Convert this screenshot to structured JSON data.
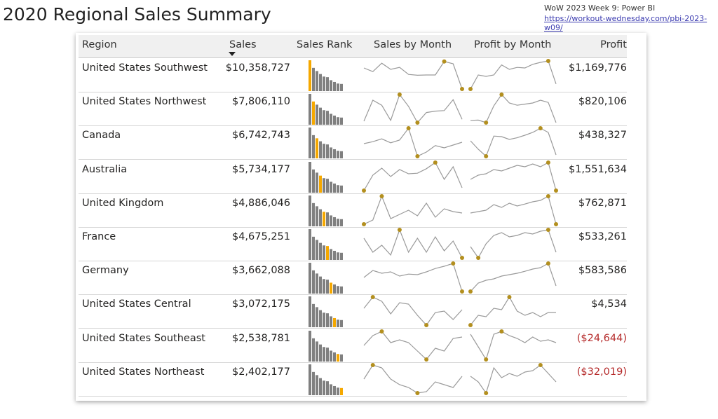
{
  "title": "2020 Regional Sales Summary",
  "header_note": "WoW 2023 Week 9: Power BI",
  "header_link": "https://workout-wednesday.com/pbi-2023-w09/",
  "columns": {
    "region": "Region",
    "sales": "Sales",
    "rank": "Sales Rank",
    "sales_month": "Sales by Month",
    "profit_month": "Profit by Month",
    "profit": "Profit"
  },
  "sort": {
    "column": "Sales",
    "direction": "descending"
  },
  "colors": {
    "highlight": "#F5A800",
    "bar": "#808080",
    "line": "#9a9a9a",
    "marker": "#B38F1E",
    "negative": "#B52A2A"
  },
  "rank_values": [
    10358727,
    7806110,
    6742743,
    5734177,
    4886046,
    4675251,
    3662088,
    3072175,
    2538781,
    2402177
  ],
  "rows": [
    {
      "region": "United States Southwest",
      "sales": "$10,358,727",
      "profit": "$1,169,776",
      "neg": false,
      "sm": [
        0.75,
        0.62,
        0.92,
        0.7,
        0.77,
        0.52,
        0.49,
        0.5,
        0.5,
        0.98,
        0.9,
        0
      ],
      "pm": [
        0,
        0.5,
        0.45,
        0.5,
        0.86,
        0.7,
        0.77,
        0.75,
        0.88,
        0.95,
        1,
        0.18
      ]
    },
    {
      "region": "United States Northwest",
      "sales": "$7,806,110",
      "profit": "$820,106",
      "neg": false,
      "sm": [
        0.05,
        0.8,
        0.62,
        0.08,
        1,
        0.58,
        0,
        0.36,
        0.41,
        0.43,
        0.82,
        0.12
      ],
      "pm": [
        0.08,
        0.09,
        0,
        0.6,
        1,
        0.7,
        0.62,
        0.66,
        0.7,
        0.8,
        0.72,
        0
      ]
    },
    {
      "region": "Canada",
      "sales": "$6,742,743",
      "profit": "$438,327",
      "neg": false,
      "sm": [
        0.45,
        0.52,
        0.62,
        0.48,
        0.58,
        1,
        0,
        0.15,
        0.38,
        0.3,
        0.4,
        0.5
      ],
      "pm": [
        0.55,
        0.25,
        0,
        0.72,
        0.7,
        0.6,
        0.66,
        0.75,
        0.85,
        1,
        0.85,
        0.05
      ]
    },
    {
      "region": "Australia",
      "sales": "$5,734,177",
      "profit": "$1,551,634",
      "neg": false,
      "sm": [
        0,
        0.55,
        0.8,
        0.5,
        0.75,
        0.6,
        0.62,
        0.78,
        1,
        0.4,
        0.85,
        0.1
      ],
      "pm": [
        0.4,
        0.55,
        0.6,
        0.75,
        0.7,
        0.8,
        0.9,
        0.85,
        0.95,
        0.85,
        1,
        0
      ]
    },
    {
      "region": "United Kingdom",
      "sales": "$4,886,046",
      "profit": "$762,871",
      "neg": false,
      "sm": [
        0,
        0.15,
        1,
        0.2,
        0.35,
        0.5,
        0.3,
        0.75,
        0.25,
        0.55,
        0.45,
        0.4
      ],
      "pm": [
        0.4,
        0.45,
        0.5,
        0.7,
        0.6,
        0.75,
        0.65,
        0.72,
        0.8,
        0.85,
        1,
        0
      ]
    },
    {
      "region": "France",
      "sales": "$4,675,251",
      "profit": "$533,261",
      "neg": false,
      "sm": [
        0.7,
        0.2,
        0.45,
        0.1,
        1,
        0.2,
        0.7,
        0.2,
        0.75,
        0.25,
        0.6,
        0
      ],
      "pm": [
        0.4,
        0,
        0.5,
        0.8,
        0.9,
        0.75,
        0.8,
        0.9,
        0.85,
        0.95,
        1,
        0.2
      ]
    },
    {
      "region": "Germany",
      "sales": "$3,662,088",
      "profit": "$583,586",
      "neg": false,
      "sm": [
        0.5,
        0.75,
        0.65,
        0.7,
        0.55,
        0.62,
        0.6,
        0.7,
        0.82,
        0.9,
        1,
        0
      ],
      "pm": [
        0,
        0.3,
        0.4,
        0.45,
        0.55,
        0.6,
        0.65,
        0.72,
        0.8,
        0.85,
        1,
        0.2
      ]
    },
    {
      "region": "United States Central",
      "sales": "$3,072,175",
      "profit": "$4,534",
      "neg": false,
      "sm": [
        0.6,
        1,
        0.85,
        0.4,
        0.8,
        0.75,
        0.35,
        0,
        0.45,
        0.5,
        0.2,
        0.55
      ],
      "pm": [
        0,
        0.35,
        0.3,
        0.6,
        0.55,
        1,
        0.5,
        0.35,
        0.45,
        0.3,
        0.45,
        0.45
      ]
    },
    {
      "region": "United States Southeast",
      "sales": "$2,538,781",
      "profit": "($24,644)",
      "neg": true,
      "sm": [
        0.5,
        0.85,
        1,
        0.6,
        0.7,
        0.6,
        0.3,
        0,
        0.4,
        0.3,
        0.75,
        0.8
      ],
      "pm": [
        0.9,
        0.45,
        0,
        0.9,
        1,
        0.85,
        0.75,
        0.6,
        0.8,
        0.65,
        0.7,
        0.6
      ]
    },
    {
      "region": "United States Northeast",
      "sales": "$2,402,177",
      "profit": "($32,019)",
      "neg": true,
      "sm": [
        0.5,
        1,
        0.9,
        0.5,
        0.3,
        0.2,
        0,
        0.05,
        0.4,
        0.3,
        0.2,
        0.6
      ],
      "pm": [
        0.6,
        0.4,
        0,
        0.9,
        0.55,
        0.7,
        0.6,
        0.75,
        0.8,
        1,
        0.7,
        0.4
      ]
    }
  ]
}
